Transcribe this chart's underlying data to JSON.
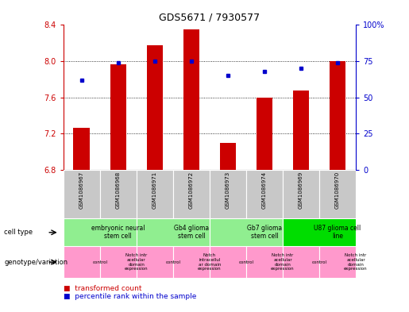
{
  "title": "GDS5671 / 7930577",
  "samples": [
    "GSM1086967",
    "GSM1086968",
    "GSM1086971",
    "GSM1086972",
    "GSM1086973",
    "GSM1086974",
    "GSM1086969",
    "GSM1086970"
  ],
  "transformed_count": [
    7.27,
    7.97,
    8.18,
    8.35,
    7.1,
    7.6,
    7.68,
    8.0
  ],
  "percentile_rank": [
    62,
    74,
    75,
    75,
    65,
    68,
    70,
    74
  ],
  "bar_base": 6.8,
  "ylim": [
    6.8,
    8.4
  ],
  "y2lim": [
    0,
    100
  ],
  "y_ticks": [
    6.8,
    7.2,
    7.6,
    8.0,
    8.4
  ],
  "y2_ticks": [
    0,
    25,
    50,
    75,
    100
  ],
  "cell_type_groups": [
    {
      "label": "embryonic neural\nstem cell",
      "start": 0,
      "end": 2,
      "color": "#90EE90"
    },
    {
      "label": "Gb4 glioma\nstem cell",
      "start": 2,
      "end": 4,
      "color": "#90EE90"
    },
    {
      "label": "Gb7 glioma\nstem cell",
      "start": 4,
      "end": 6,
      "color": "#90EE90"
    },
    {
      "label": "U87 glioma cell\nline",
      "start": 6,
      "end": 8,
      "color": "#00DD00"
    }
  ],
  "genotype_groups": [
    {
      "label": "control",
      "start": 0,
      "end": 1,
      "color": "#FF99CC"
    },
    {
      "label": "Notch intr\nacellular\ndomain\nexpression",
      "start": 1,
      "end": 2,
      "color": "#FF99CC"
    },
    {
      "label": "control",
      "start": 2,
      "end": 3,
      "color": "#FF99CC"
    },
    {
      "label": "Notch\nintracellul\nar domain\nexpression",
      "start": 3,
      "end": 4,
      "color": "#FF99CC"
    },
    {
      "label": "control",
      "start": 4,
      "end": 5,
      "color": "#FF99CC"
    },
    {
      "label": "Notch intr\nacellular\ndomain\nexpression",
      "start": 5,
      "end": 6,
      "color": "#FF99CC"
    },
    {
      "label": "control",
      "start": 6,
      "end": 7,
      "color": "#FF99CC"
    },
    {
      "label": "Notch intr\nacellular\ndomain\nexpression",
      "start": 7,
      "end": 8,
      "color": "#FF99CC"
    }
  ],
  "bar_color": "#CC0000",
  "dot_color": "#0000CC",
  "tick_color_left": "#CC0000",
  "tick_color_right": "#0000CC",
  "grid_color": "#000000",
  "bg_color": "#FFFFFF",
  "gray_color": "#C8C8C8"
}
